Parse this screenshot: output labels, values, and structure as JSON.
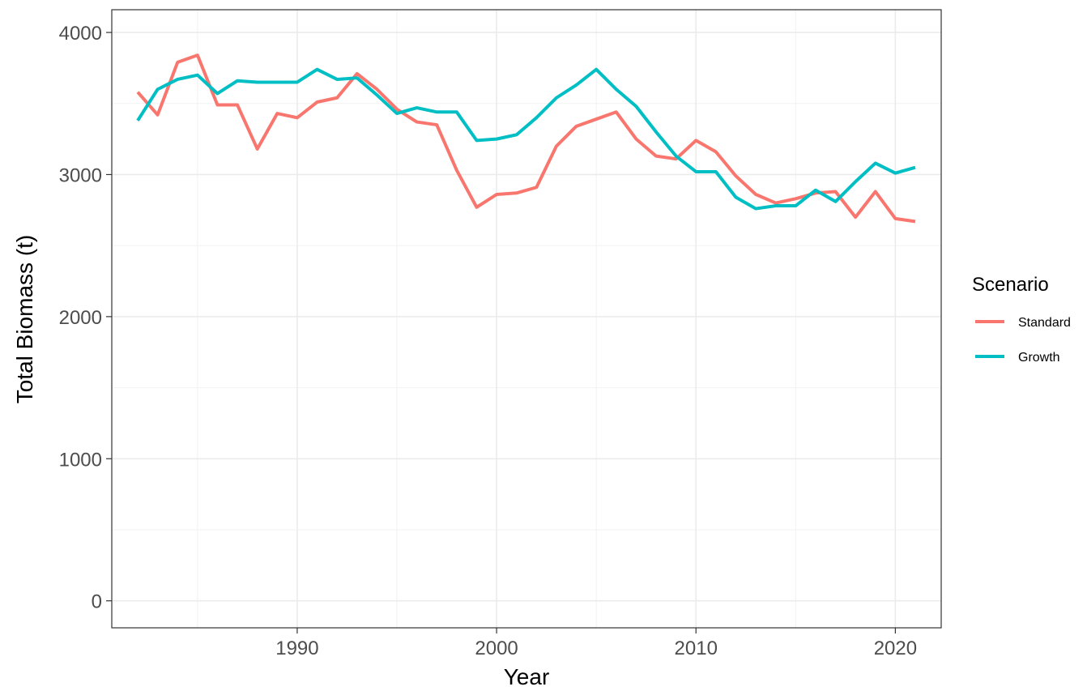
{
  "chart_data": {
    "type": "line",
    "title": "",
    "xlabel": "Year",
    "ylabel": "Total Biomass (t)",
    "xlim": [
      1980.7,
      2022.3
    ],
    "ylim": [
      -190,
      4160
    ],
    "x_ticks": [
      1990,
      2000,
      2010,
      2020
    ],
    "x_tick_labels": [
      "1990",
      "2000",
      "2010",
      "2020"
    ],
    "x_minor_ticks": [
      1985,
      1995,
      2005,
      2015
    ],
    "y_ticks": [
      0,
      1000,
      2000,
      3000,
      4000
    ],
    "y_tick_labels": [
      "0",
      "1000",
      "2000",
      "3000",
      "4000"
    ],
    "y_minor_ticks": [
      500,
      1500,
      2500,
      3500
    ],
    "grid": true,
    "legend": {
      "title": "Scenario",
      "position": "right"
    },
    "x": [
      1982,
      1983,
      1984,
      1985,
      1986,
      1987,
      1988,
      1989,
      1990,
      1991,
      1992,
      1993,
      1994,
      1995,
      1996,
      1997,
      1998,
      1999,
      2000,
      2001,
      2002,
      2003,
      2004,
      2005,
      2006,
      2007,
      2008,
      2009,
      2010,
      2011,
      2012,
      2013,
      2014,
      2015,
      2016,
      2017,
      2018,
      2019,
      2020,
      2021
    ],
    "series": [
      {
        "name": "Standard",
        "color": "#F8766D",
        "values": [
          3580,
          3420,
          3790,
          3840,
          3490,
          3490,
          3180,
          3430,
          3400,
          3510,
          3540,
          3710,
          3600,
          3460,
          3370,
          3350,
          3030,
          2770,
          2860,
          2870,
          2910,
          3200,
          3340,
          3390,
          3440,
          3250,
          3130,
          3110,
          3240,
          3160,
          2990,
          2860,
          2800,
          2830,
          2870,
          2880,
          2700,
          2880,
          2690,
          2670
        ]
      },
      {
        "name": "Growth",
        "color": "#00BFC4",
        "values": [
          3380,
          3600,
          3670,
          3700,
          3570,
          3660,
          3650,
          3650,
          3650,
          3740,
          3670,
          3680,
          3560,
          3430,
          3470,
          3440,
          3440,
          3240,
          3250,
          3280,
          3400,
          3540,
          3630,
          3740,
          3600,
          3480,
          3300,
          3130,
          3020,
          3020,
          2840,
          2760,
          2780,
          2780,
          2890,
          2810,
          2950,
          3080,
          3010,
          3050
        ]
      }
    ]
  }
}
